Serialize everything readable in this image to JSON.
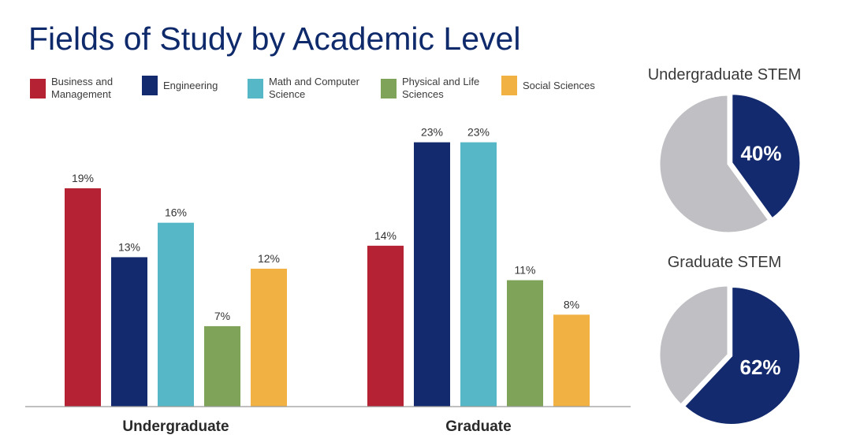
{
  "title": "Fields of Study by Academic Level",
  "legend": [
    {
      "label": "Business and Management",
      "color": "#b52233"
    },
    {
      "label": "Engineering",
      "color": "#132b6e"
    },
    {
      "label": "Math and Computer Science",
      "color": "#56b7c6"
    },
    {
      "label": "Physical and Life Sciences",
      "color": "#80a35a"
    },
    {
      "label": "Social Sciences",
      "color": "#f2b143"
    }
  ],
  "chart_data": [
    {
      "type": "bar",
      "categories": [
        "Undergraduate",
        "Graduate"
      ],
      "series": [
        {
          "name": "Business and Management",
          "values": [
            19,
            14
          ],
          "labels": [
            "19%",
            "14%"
          ],
          "color": "#b52233"
        },
        {
          "name": "Engineering",
          "values": [
            13,
            23
          ],
          "labels": [
            "13%",
            "23%"
          ],
          "color": "#132b6e"
        },
        {
          "name": "Math and Computer Science",
          "values": [
            16,
            23
          ],
          "labels": [
            "16%",
            "23%"
          ],
          "color": "#56b7c6"
        },
        {
          "name": "Physical and Life Sciences",
          "values": [
            7,
            11
          ],
          "labels": [
            "7%",
            "11%"
          ],
          "color": "#80a35a"
        },
        {
          "name": "Social Sciences",
          "values": [
            12,
            8
          ],
          "labels": [
            "12%",
            "8%"
          ],
          "color": "#f2b143"
        }
      ],
      "ylim": [
        0,
        24
      ],
      "grid": false,
      "legend_position": "top"
    },
    {
      "type": "pie",
      "title": "Undergraduate STEM",
      "slices": [
        {
          "value": 40,
          "label": "40%",
          "color": "#132b6e"
        },
        {
          "value": 60,
          "label": "",
          "color": "#c0bfc3"
        }
      ]
    },
    {
      "type": "pie",
      "title": "Graduate STEM",
      "slices": [
        {
          "value": 62,
          "label": "62%",
          "color": "#132b6e"
        },
        {
          "value": 38,
          "label": "",
          "color": "#c0bfc3"
        }
      ]
    }
  ]
}
